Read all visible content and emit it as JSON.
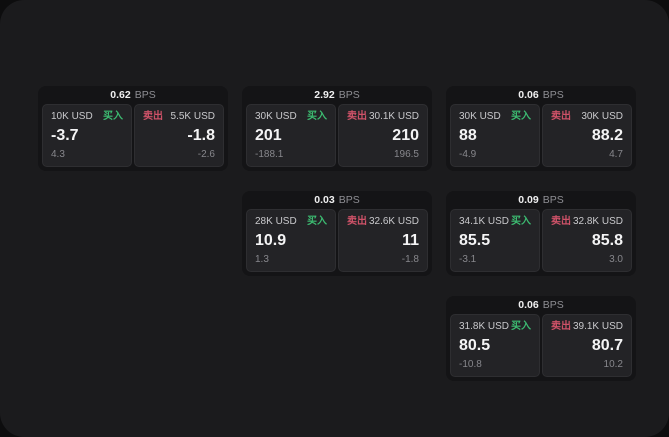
{
  "labels": {
    "bps": "BPS",
    "buy": "买入",
    "sell": "卖出"
  },
  "colors": {
    "background": "#0d0d0e",
    "window": "#1b1b1d",
    "card": "#141416",
    "panel": "#232326",
    "buy_green": "#3cbb71",
    "sell_red": "#ce5268"
  },
  "cards": [
    {
      "bps": "0.62",
      "buy": {
        "amount": "10K USD",
        "value": "-3.7",
        "sub": "4.3"
      },
      "sell": {
        "amount": "5.5K USD",
        "value": "-1.8",
        "sub": "-2.6"
      }
    },
    {
      "bps": "2.92",
      "buy": {
        "amount": "30K USD",
        "value": "201",
        "sub": "-188.1"
      },
      "sell": {
        "amount": "30.1K USD",
        "value": "210",
        "sub": "196.5"
      }
    },
    {
      "bps": "0.06",
      "buy": {
        "amount": "30K USD",
        "value": "88",
        "sub": "-4.9"
      },
      "sell": {
        "amount": "30K USD",
        "value": "88.2",
        "sub": "4.7"
      }
    },
    {
      "bps": "0.03",
      "buy": {
        "amount": "28K USD",
        "value": "10.9",
        "sub": "1.3"
      },
      "sell": {
        "amount": "32.6K USD",
        "value": "11",
        "sub": "-1.8"
      }
    },
    {
      "bps": "0.09",
      "buy": {
        "amount": "34.1K USD",
        "value": "85.5",
        "sub": "-3.1"
      },
      "sell": {
        "amount": "32.8K USD",
        "value": "85.8",
        "sub": "3.0"
      }
    },
    {
      "bps": "0.06",
      "buy": {
        "amount": "31.8K USD",
        "value": "80.5",
        "sub": "-10.8"
      },
      "sell": {
        "amount": "39.1K USD",
        "value": "80.7",
        "sub": "10.2"
      }
    }
  ]
}
